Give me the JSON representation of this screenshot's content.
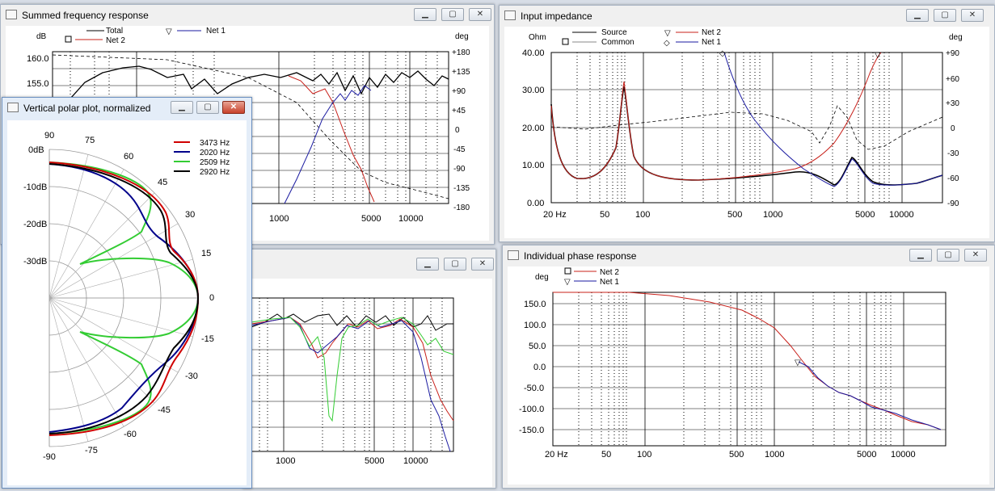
{
  "windows": {
    "summed": {
      "title": "Summed frequency response",
      "left_unit": "dB",
      "right_unit": "deg",
      "legend": [
        "Total",
        "Net 1",
        "Net 2"
      ],
      "y_ticks": [
        "160.0",
        "155.0"
      ],
      "right_ticks": [
        "+180",
        "+135",
        "+90",
        "+45",
        "0",
        "-45",
        "-90",
        "-135",
        "-180"
      ],
      "x_ticks": [
        "1000",
        "5000",
        "10000"
      ]
    },
    "polar": {
      "title": "Vertical polar plot, normalized",
      "db_ticks": [
        "0dB",
        "-10dB",
        "-20dB",
        "-30dB"
      ],
      "angle_ticks": [
        "90",
        "75",
        "60",
        "45",
        "30",
        "15",
        "0",
        "-15",
        "-30",
        "-45",
        "-60",
        "-75",
        "-90"
      ],
      "legend": [
        {
          "label": "3473 Hz",
          "color": "#d00000"
        },
        {
          "label": "2020 Hz",
          "color": "#00008b"
        },
        {
          "label": "2509 Hz",
          "color": "#33cc33"
        },
        {
          "label": "2920 Hz",
          "color": "#000000"
        }
      ]
    },
    "offaxis": {
      "x_ticks": [
        "1000",
        "5000",
        "10000"
      ]
    },
    "impedance": {
      "title": "Input impedance",
      "left_unit": "Ohm",
      "right_unit": "deg",
      "legend": [
        "Source",
        "Net 2",
        "Common",
        "Net 1"
      ],
      "y_ticks": [
        "40.00",
        "30.00",
        "20.00",
        "10.00",
        "0.00"
      ],
      "right_ticks": [
        "+90",
        "+60",
        "+30",
        "0",
        "-30",
        "-60",
        "-90"
      ],
      "x_ticks": [
        "20 Hz",
        "50",
        "100",
        "500",
        "1000",
        "5000",
        "10000"
      ]
    },
    "phase": {
      "title": "Individual phase response",
      "left_unit": "deg",
      "legend": [
        "Net 2",
        "Net 1"
      ],
      "y_ticks": [
        "150.0",
        "100.0",
        "50.0",
        "0.0",
        "-50.0",
        "-100.0",
        "-150.0"
      ],
      "x_ticks": [
        "20 Hz",
        "50",
        "100",
        "500",
        "1000",
        "5000",
        "10000"
      ]
    }
  },
  "colors": {
    "net1": "#1a1aa0",
    "net2": "#c8201a",
    "grid": "#000000",
    "active_title": "#e4edf8"
  }
}
